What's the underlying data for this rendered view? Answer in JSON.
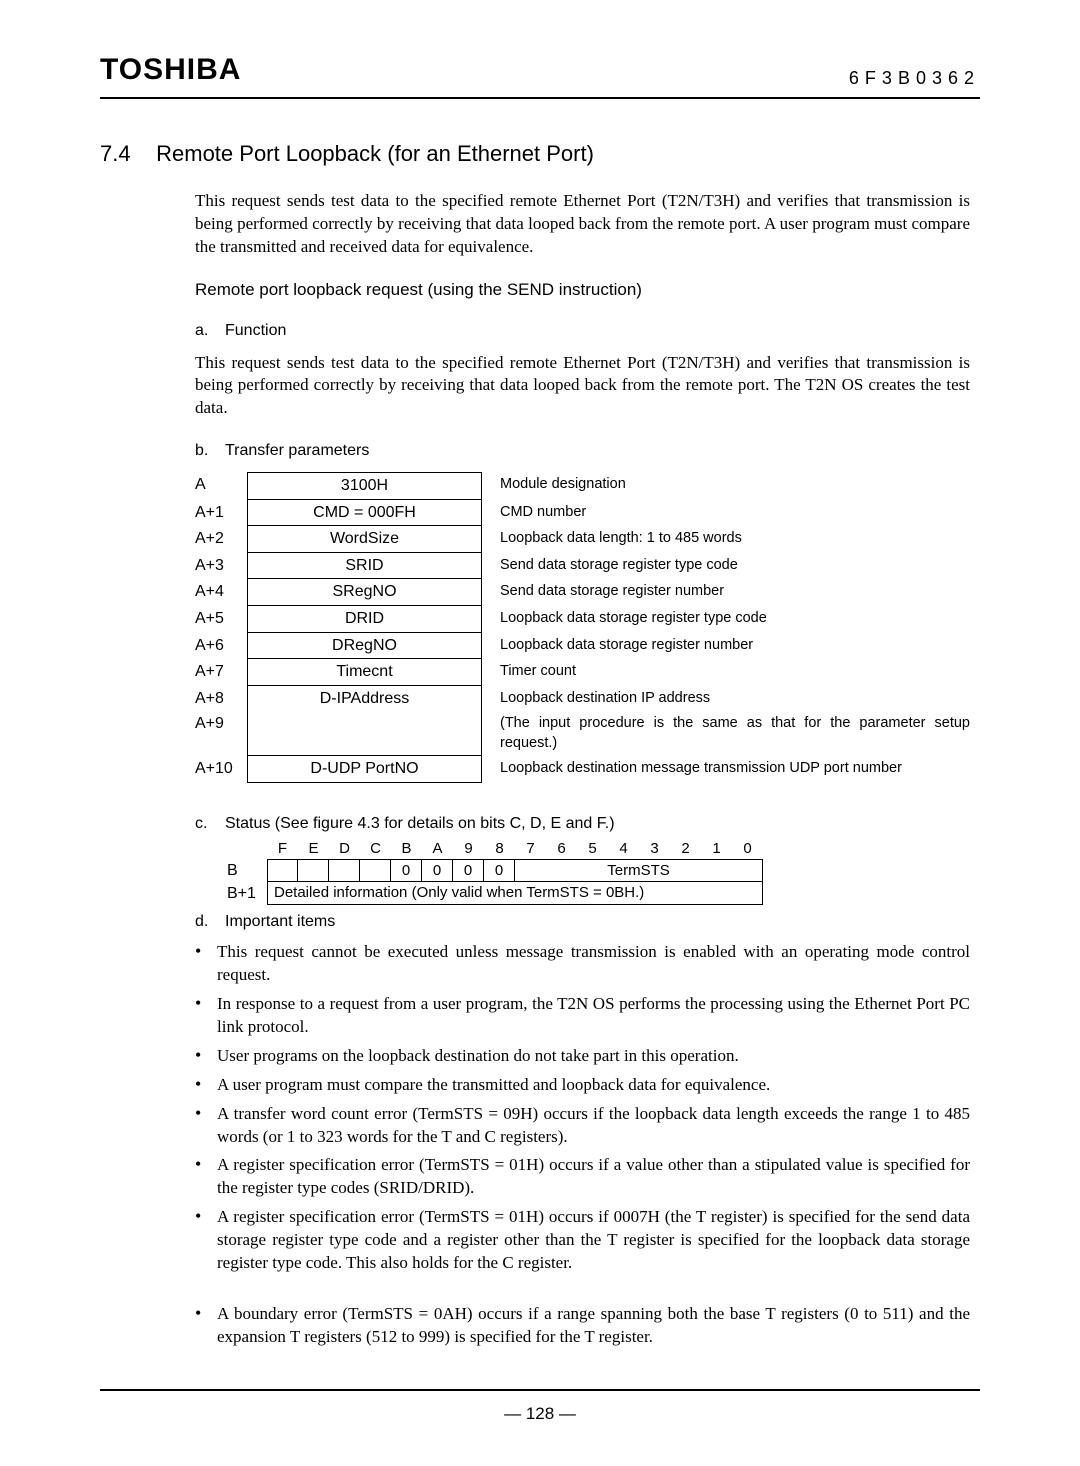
{
  "header": {
    "brand": "TOSHIBA",
    "docnum": "6F3B0362"
  },
  "section": {
    "number": "7.4",
    "title": "Remote Port Loopback (for an Ethernet Port)",
    "intro": "This request sends test data to the specified remote Ethernet Port (T2N/T3H) and verifies that transmission is being performed correctly by receiving that data looped back from the remote port. A user program must compare the transmitted and received data for equivalence.",
    "sub_title": "Remote port loopback request (using the SEND instruction)",
    "a_label": "a.",
    "a_title": "Function",
    "a_text": "This request sends test data to the specified remote Ethernet Port (T2N/T3H) and verifies that transmission is being performed correctly by receiving that data looped back from the remote port. The T2N OS creates the test data.",
    "b_label": "b.",
    "b_title": "Transfer parameters"
  },
  "param_table": {
    "rows": [
      {
        "addr": "A",
        "value": "3100H",
        "desc": "Module designation"
      },
      {
        "addr": "A+1",
        "value": "CMD = 000FH",
        "desc": "CMD number"
      },
      {
        "addr": "A+2",
        "value": "WordSize",
        "desc": "Loopback data length: 1 to 485 words"
      },
      {
        "addr": "A+3",
        "value": "SRID",
        "desc": "Send data storage register type code"
      },
      {
        "addr": "A+4",
        "value": "SRegNO",
        "desc": "Send data storage register number"
      },
      {
        "addr": "A+5",
        "value": "DRID",
        "desc": "Loopback data storage register type code"
      },
      {
        "addr": "A+6",
        "value": "DRegNO",
        "desc": "Loopback data storage register number"
      },
      {
        "addr": "A+7",
        "value": "Timecnt",
        "desc": "Timer count"
      },
      {
        "addr": "A+8",
        "value": "D-IPAddress",
        "desc": "Loopback destination IP address"
      },
      {
        "addr": "A+9",
        "value": "",
        "desc": "(The input procedure is the same as that for the parameter setup request.)"
      },
      {
        "addr": "A+10",
        "value": "D-UDP PortNO",
        "desc": "Loopback destination message transmission UDP port number"
      }
    ]
  },
  "status": {
    "c_label": "c.",
    "c_title": "Status (See figure 4.3 for details on bits C, D, E and F.)",
    "bits": [
      "F",
      "E",
      "D",
      "C",
      "B",
      "A",
      "9",
      "8",
      "7",
      "6",
      "5",
      "4",
      "3",
      "2",
      "1",
      "0"
    ],
    "row_b_label": "B",
    "row_b_cells_left4": [
      "",
      "",
      "",
      ""
    ],
    "row_b_cells_mid4": [
      "0",
      "0",
      "0",
      "0"
    ],
    "row_b_right": "TermSTS",
    "row_b1_label": "B+1",
    "row_b1_text": "Detailed information (Only valid when TermSTS = 0BH.)"
  },
  "d_label": "d.",
  "d_title": "Important items",
  "bullets": [
    "This request cannot be executed unless message transmission is enabled with an operating mode control request.",
    "In response to a request from a user program, the T2N OS performs the processing using the Ethernet Port PC link protocol.",
    "User programs on the loopback destination do not take part in this operation.",
    "A user program must compare the transmitted and loopback data for equivalence.",
    "A transfer word count error (TermSTS = 09H) occurs if the loopback data length exceeds the range 1 to 485 words (or 1 to 323 words for the T and C registers).",
    "A register specification error (TermSTS = 01H) occurs if a value other than a stipulated value is specified for the register type codes (SRID/DRID).",
    "A register specification error (TermSTS = 01H) occurs if 0007H (the T register) is specified for the send data storage register type code and a register other than the T register is specified for the loopback data storage register type code. This also holds for the C register."
  ],
  "bullets2": [
    "A boundary error (TermSTS = 0AH) occurs if a range spanning both the base T registers (0 to 511) and the expansion T registers (512 to 999) is specified for the T register."
  ],
  "footer": {
    "page": "—  128  —"
  }
}
